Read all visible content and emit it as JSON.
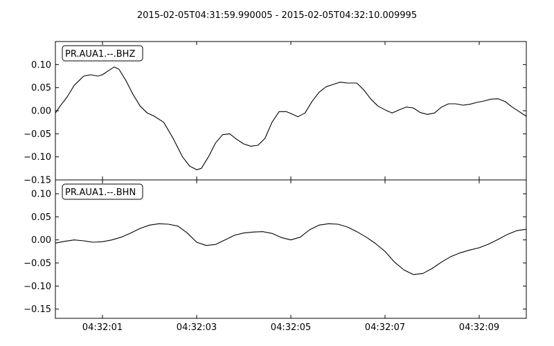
{
  "chart_data": {
    "type": "line",
    "title": "2015-02-05T04:31:59.990005  -  2015-02-05T04:32:10.009995",
    "x_ticks": [
      "04:32:01",
      "04:32:03",
      "04:32:05",
      "04:32:07",
      "04:32:09"
    ],
    "x_tick_seconds": [
      1,
      3,
      5,
      7,
      9
    ],
    "xlim": [
      0,
      10
    ],
    "grid": false,
    "legend_placement": "top-left",
    "panels": [
      {
        "name": "PR.AUA1.--.BHZ",
        "ylim": [
          -0.15,
          0.15
        ],
        "y_ticks": [
          0.1,
          0.05,
          0.0,
          -0.05,
          -0.1,
          -0.15
        ],
        "y_tick_labels": [
          "0.10",
          "0.05",
          "0.00",
          "−0.05",
          "−0.10",
          "−0.15"
        ],
        "series": {
          "x": [
            0.0,
            0.1,
            0.25,
            0.4,
            0.55,
            0.6,
            0.75,
            0.9,
            1.0,
            1.1,
            1.25,
            1.35,
            1.5,
            1.65,
            1.8,
            1.95,
            2.1,
            2.3,
            2.5,
            2.7,
            2.85,
            3.0,
            3.1,
            3.25,
            3.4,
            3.55,
            3.7,
            3.85,
            4.0,
            4.15,
            4.3,
            4.45,
            4.6,
            4.75,
            4.9,
            5.0,
            5.15,
            5.3,
            5.45,
            5.6,
            5.75,
            5.9,
            6.05,
            6.2,
            6.4,
            6.55,
            6.7,
            6.85,
            7.0,
            7.15,
            7.3,
            7.45,
            7.6,
            7.75,
            7.9,
            8.05,
            8.2,
            8.35,
            8.5,
            8.65,
            8.8,
            8.95,
            9.1,
            9.25,
            9.4,
            9.55,
            9.7,
            9.85,
            10.0
          ],
          "y": [
            -0.005,
            0.01,
            0.03,
            0.055,
            0.07,
            0.075,
            0.078,
            0.075,
            0.078,
            0.085,
            0.095,
            0.09,
            0.065,
            0.035,
            0.01,
            -0.005,
            -0.012,
            -0.025,
            -0.06,
            -0.1,
            -0.12,
            -0.128,
            -0.125,
            -0.1,
            -0.07,
            -0.052,
            -0.05,
            -0.062,
            -0.072,
            -0.077,
            -0.075,
            -0.06,
            -0.025,
            -0.002,
            -0.002,
            -0.006,
            -0.013,
            -0.005,
            0.02,
            0.04,
            0.052,
            0.057,
            0.062,
            0.06,
            0.06,
            0.045,
            0.025,
            0.01,
            0.002,
            -0.005,
            0.002,
            0.008,
            0.006,
            -0.004,
            -0.008,
            -0.005,
            0.008,
            0.015,
            0.015,
            0.012,
            0.014,
            0.018,
            0.021,
            0.025,
            0.026,
            0.02,
            0.008,
            -0.002,
            -0.012
          ]
        }
      },
      {
        "name": "PR.AUA1.--.BHN",
        "ylim": [
          -0.17,
          0.13
        ],
        "y_ticks": [
          0.1,
          0.05,
          0.0,
          -0.05,
          -0.1,
          -0.15
        ],
        "y_tick_labels": [
          "0.10",
          "0.05",
          "0.00",
          "−0.05",
          "−0.10",
          "−0.15"
        ],
        "series": {
          "x": [
            0.0,
            0.2,
            0.4,
            0.6,
            0.8,
            1.0,
            1.2,
            1.4,
            1.6,
            1.8,
            2.0,
            2.2,
            2.4,
            2.6,
            2.8,
            3.0,
            3.2,
            3.4,
            3.6,
            3.8,
            4.0,
            4.2,
            4.4,
            4.6,
            4.8,
            5.0,
            5.2,
            5.4,
            5.6,
            5.8,
            6.0,
            6.2,
            6.4,
            6.6,
            6.8,
            7.0,
            7.2,
            7.4,
            7.6,
            7.8,
            8.0,
            8.2,
            8.4,
            8.6,
            8.8,
            9.0,
            9.2,
            9.4,
            9.6,
            9.8,
            10.0
          ],
          "y": [
            -0.007,
            -0.003,
            0.0,
            -0.002,
            -0.005,
            -0.004,
            0.0,
            0.006,
            0.015,
            0.025,
            0.032,
            0.035,
            0.034,
            0.03,
            0.015,
            -0.005,
            -0.012,
            -0.01,
            0.0,
            0.01,
            0.015,
            0.017,
            0.018,
            0.014,
            0.005,
            0.0,
            0.006,
            0.022,
            0.032,
            0.035,
            0.034,
            0.028,
            0.018,
            0.006,
            -0.008,
            -0.025,
            -0.048,
            -0.065,
            -0.075,
            -0.073,
            -0.062,
            -0.048,
            -0.036,
            -0.028,
            -0.022,
            -0.017,
            -0.009,
            0.001,
            0.012,
            0.02,
            0.023
          ]
        }
      }
    ]
  }
}
